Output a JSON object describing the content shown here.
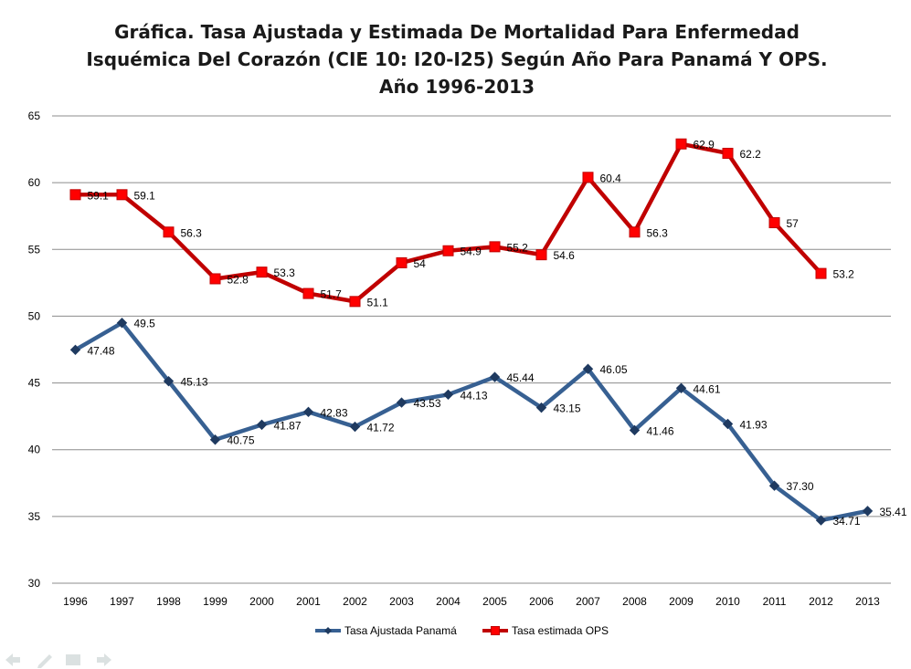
{
  "title": {
    "line1": "Gráfica. Tasa Ajustada y Estimada De Mortalidad Para Enfermedad",
    "line2": "Isquémica Del Corazón (CIE 10: I20-I25) Según Año Para Panamá Y OPS.",
    "line3": "Año 1996-2013"
  },
  "chart_data": {
    "type": "line",
    "title": "Gráfica. Tasa Ajustada y Estimada De Mortalidad Para Enfermedad Isquémica Del Corazón (CIE 10: I20-I25) Según Año Para Panamá Y OPS. Año 1996-2013",
    "categories": [
      "1996",
      "1997",
      "1998",
      "1999",
      "2000",
      "2001",
      "2002",
      "2003",
      "2004",
      "2005",
      "2006",
      "2007",
      "2008",
      "2009",
      "2010",
      "2011",
      "2012",
      "2013"
    ],
    "ylim": [
      30,
      65
    ],
    "yticks": [
      30,
      35,
      40,
      45,
      50,
      55,
      60,
      65
    ],
    "grid": true,
    "legend_position": "bottom",
    "series": [
      {
        "name": "Tasa Ajustada Panamá",
        "color": "#376092",
        "marker": "diamond",
        "values": [
          47.48,
          49.5,
          45.13,
          40.75,
          41.87,
          42.83,
          41.72,
          43.53,
          44.13,
          45.44,
          43.15,
          46.05,
          41.46,
          44.61,
          41.93,
          37.3,
          34.71,
          35.41
        ],
        "labels": [
          "47.48",
          "49.5",
          "45.13",
          "40.75",
          "41.87",
          "42.83",
          "41.72",
          "43.53",
          "44.13",
          "45.44",
          "43.15",
          "46.05",
          "41.46",
          "44.61",
          "41.93",
          "37.30",
          "34.71",
          "35.41"
        ]
      },
      {
        "name": "Tasa estimada OPS",
        "color": "#C00000",
        "marker": "square",
        "values": [
          59.1,
          59.1,
          56.3,
          52.8,
          53.3,
          51.7,
          51.1,
          54,
          54.9,
          55.2,
          54.6,
          60.4,
          56.3,
          62.9,
          62.2,
          57,
          53.2,
          null
        ],
        "labels": [
          "59.1",
          "59.1",
          "56.3",
          "52.8",
          "53.3",
          "51.7",
          "51.1",
          "54",
          "54.9",
          "55.2",
          "54.6",
          "60.4",
          "56.3",
          "62.9",
          "62.2",
          "57",
          "53.2",
          null
        ]
      }
    ]
  }
}
